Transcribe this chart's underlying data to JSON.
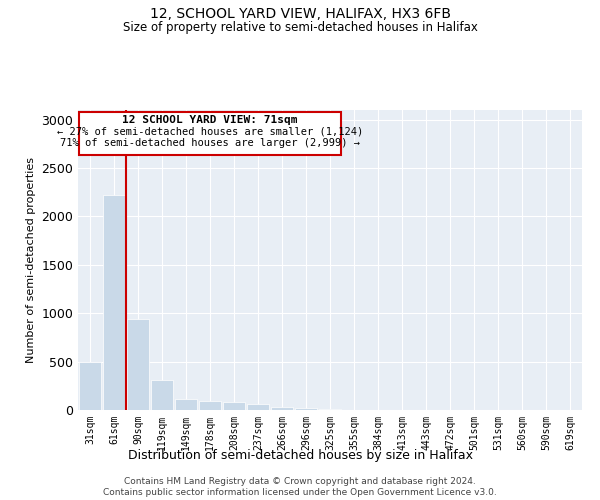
{
  "title1": "12, SCHOOL YARD VIEW, HALIFAX, HX3 6FB",
  "title2": "Size of property relative to semi-detached houses in Halifax",
  "xlabel": "Distribution of semi-detached houses by size in Halifax",
  "ylabel": "Number of semi-detached properties",
  "categories": [
    "31sqm",
    "61sqm",
    "90sqm",
    "119sqm",
    "149sqm",
    "178sqm",
    "208sqm",
    "237sqm",
    "266sqm",
    "296sqm",
    "325sqm",
    "355sqm",
    "384sqm",
    "413sqm",
    "443sqm",
    "472sqm",
    "501sqm",
    "531sqm",
    "560sqm",
    "590sqm",
    "619sqm"
  ],
  "values": [
    500,
    2220,
    940,
    310,
    110,
    90,
    80,
    60,
    30,
    20,
    10,
    5,
    3,
    2,
    1,
    1,
    0,
    0,
    0,
    0,
    0
  ],
  "bar_color": "#c9d9e8",
  "property_line_x": 1.5,
  "property_line_color": "#cc0000",
  "annotation_title": "12 SCHOOL YARD VIEW: 71sqm",
  "annotation_line1": "← 27% of semi-detached houses are smaller (1,124)",
  "annotation_line2": "71% of semi-detached houses are larger (2,999) →",
  "annotation_box_color": "#cc0000",
  "footer1": "Contains HM Land Registry data © Crown copyright and database right 2024.",
  "footer2": "Contains public sector information licensed under the Open Government Licence v3.0.",
  "ylim": [
    0,
    3100
  ],
  "background_color": "#e8eef5"
}
